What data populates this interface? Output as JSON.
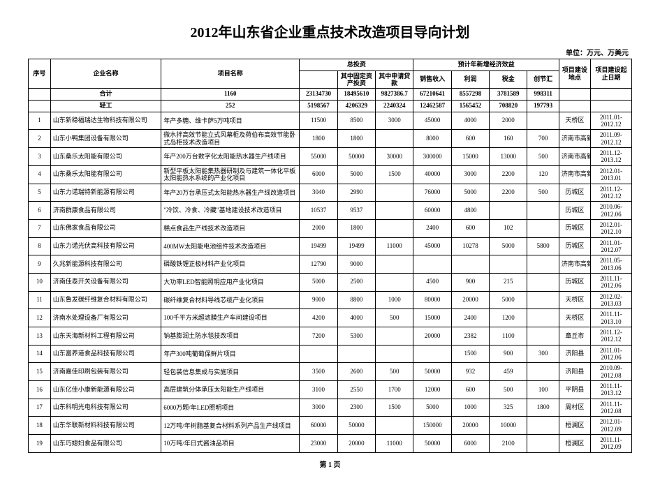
{
  "title": "2012年山东省企业重点技术改造项目导向计划",
  "unit_label": "单位：万元、万美元",
  "page_footer": "第 1 页",
  "headers": {
    "idx": "序号",
    "company": "企业名称",
    "project": "项目名称",
    "total_invest_group": "总投资",
    "fixed_asset": "其中固定资产投资",
    "apply_loan": "其中申请贷款",
    "benefit_group": "预计年新增经济效益",
    "sales": "销售收入",
    "profit": "利润",
    "tax": "税金",
    "fx": "创节汇",
    "location": "项目建设地点",
    "dates": "项目建设起止日期"
  },
  "summary": {
    "label": "合计",
    "project_count": "1160",
    "total": "23134730",
    "fixed": "18495610",
    "loan": "9827386.7",
    "sales": "67210641",
    "profit": "8557298",
    "tax": "3781589",
    "fx": "998311"
  },
  "section": {
    "label": "轻工",
    "project_count": "252",
    "total": "5198567",
    "fixed": "4206329",
    "loan": "2240324",
    "sales": "12462587",
    "profit": "1565452",
    "tax": "708820",
    "fx": "197793"
  },
  "rows": [
    {
      "idx": "1",
      "company": "山东新稳福瑞达生物科技有限公司",
      "project": "年产多糖、维卡萨5万吨项目",
      "total": "11500",
      "fixed": "8500",
      "loan": "3000",
      "sales": "45000",
      "profit": "4000",
      "tax": "2000",
      "fx": "",
      "loc": "天桥区",
      "date": "2011.01-2012.12"
    },
    {
      "idx": "2",
      "company": "山东小鸭集团设备有限公司",
      "project": "微水拌高效节能立式风幕柜及荷伯布高效节能卧式岛柜技术改造项目",
      "total": "1800",
      "fixed": "1800",
      "loan": "",
      "sales": "8000",
      "profit": "600",
      "tax": "160",
      "fx": "700",
      "loc": "济南市高新区",
      "date": "2011.09-2012.12"
    },
    {
      "idx": "3",
      "company": "山东桑乐太阳能有限公司",
      "project": "年产200万台数字化太阳能热水器生产线项目",
      "total": "55000",
      "fixed": "50000",
      "loan": "30000",
      "sales": "300000",
      "profit": "15000",
      "tax": "13000",
      "fx": "500",
      "loc": "济南市高新区",
      "date": "2011.12-2013.12"
    },
    {
      "idx": "4",
      "company": "山东桑乐太阳能有限公司",
      "project": "新型平板太阳能集热器研制及与建筑一体化平板太阳能热水系统的产业化项目",
      "total": "6000",
      "fixed": "5000",
      "loan": "1500",
      "sales": "40000",
      "profit": "3000",
      "tax": "2200",
      "fx": "120",
      "loc": "济南市高新区",
      "date": "2012.01-2013.01"
    },
    {
      "idx": "5",
      "company": "山东力诺瑞特新能源有限公司",
      "project": "年产20万台承压式太阳能热水器生产线改造项目",
      "total": "3040",
      "fixed": "2990",
      "loan": "",
      "sales": "76000",
      "profit": "5000",
      "tax": "2200",
      "fx": "500",
      "loc": "历城区",
      "date": "2011.12-2012.12"
    },
    {
      "idx": "6",
      "company": "济南群康食品有限公司",
      "project": "\"冷饮、冷食、冷藏\"基地建设技术改造项目",
      "total": "10537",
      "fixed": "9537",
      "loan": "",
      "sales": "60000",
      "profit": "4800",
      "tax": "",
      "fx": "",
      "loc": "历城区",
      "date": "2010.06-2012.06"
    },
    {
      "idx": "7",
      "company": "山东佛家食品有限公司",
      "project": "糕点食品生产线技术改造项目",
      "total": "2000",
      "fixed": "1800",
      "loan": "",
      "sales": "2400",
      "profit": "600",
      "tax": "102",
      "fx": "",
      "loc": "历城区",
      "date": "2012.01-2012.10"
    },
    {
      "idx": "8",
      "company": "山东力诺光伏高科技有限公司",
      "project": "400MW太阳能电池组件技术改造项目",
      "total": "19499",
      "fixed": "19499",
      "loan": "11000",
      "sales": "45000",
      "profit": "10278",
      "tax": "5000",
      "fx": "5800",
      "loc": "历城区",
      "date": "2011.01-2012.07"
    },
    {
      "idx": "9",
      "company": "久兆新能源科技有限公司",
      "project": "磷酸铁锂正极材料产业化项目",
      "total": "12790",
      "fixed": "9000",
      "loan": "",
      "sales": "",
      "profit": "",
      "tax": "",
      "fx": "",
      "loc": "济南市高新区",
      "date": "2011.05-2013.06"
    },
    {
      "idx": "10",
      "company": "济南佳泰开关设备有限公司",
      "project": "大功率LED智能照明应用产业化项目",
      "total": "5000",
      "fixed": "2500",
      "loan": "",
      "sales": "4500",
      "profit": "900",
      "tax": "215",
      "fx": "",
      "loc": "历城区",
      "date": "2011.11-2012.06"
    },
    {
      "idx": "11",
      "company": "山东鲁发碳纤维复合材料有限公司",
      "project": "碳纤维复合材料导线芯缆产业化项目",
      "total": "9000",
      "fixed": "8800",
      "loan": "1000",
      "sales": "80000",
      "profit": "20000",
      "tax": "5000",
      "fx": "",
      "loc": "天桥区",
      "date": "2012.02-2013.03"
    },
    {
      "idx": "12",
      "company": "济南水处理设备厂有限公司",
      "project": "100千平方米超滤膜生产车间建设项目",
      "total": "4200",
      "fixed": "4000",
      "loan": "500",
      "sales": "15000",
      "profit": "2400",
      "tax": "1200",
      "fx": "",
      "loc": "天桥区",
      "date": "2011.11-2013.10"
    },
    {
      "idx": "13",
      "company": "山东天海新材料工程有限公司",
      "project": "钠基膨润土防水毯技改项目",
      "total": "7200",
      "fixed": "5300",
      "loan": "",
      "sales": "20000",
      "profit": "2382",
      "tax": "1100",
      "fx": "",
      "loc": "章丘市",
      "date": "2011.12-2012.12"
    },
    {
      "idx": "14",
      "company": "山东富养道食品科技有限公司",
      "project": "年产300吨葡萄保鲜片项目",
      "total": "",
      "fixed": "",
      "loan": "",
      "sales": "",
      "profit": "1500",
      "tax": "900",
      "fx": "300",
      "loc": "济阳县",
      "date": "2011.01-2012.06"
    },
    {
      "idx": "15",
      "company": "济南嘉佳印刷包装有限公司",
      "project": "轻包装信息集成与实施项目",
      "total": "3500",
      "fixed": "2600",
      "loan": "500",
      "sales": "50000",
      "profit": "932",
      "tax": "459",
      "fx": "",
      "loc": "济阳县",
      "date": "2010.09-2012.08"
    },
    {
      "idx": "16",
      "company": "山东亿佳小康新能源有限公司",
      "project": "高层建筑分体承压太阳能生产线项目",
      "total": "3100",
      "fixed": "2550",
      "loan": "1700",
      "sales": "12000",
      "profit": "600",
      "tax": "500",
      "fx": "100",
      "loc": "平阴县",
      "date": "2011.11-2013.12"
    },
    {
      "idx": "17",
      "company": "山东科明光电科技有限公司",
      "project": "6000万颗/年LED照明项目",
      "total": "3000",
      "fixed": "2300",
      "loan": "1500",
      "sales": "5000",
      "profit": "1000",
      "tax": "325",
      "fx": "1800",
      "loc": "周村区",
      "date": "2011.11-2012.08"
    },
    {
      "idx": "18",
      "company": "山东华联新材料科技有限公司",
      "project": "12万吨/年树脂基复合材料系列产品生产线项目",
      "total": "60000",
      "fixed": "50000",
      "loan": "",
      "sales": "150000",
      "profit": "20000",
      "tax": "10000",
      "fx": "",
      "loc": "桓澜区",
      "date": "2012.01-2012.09"
    },
    {
      "idx": "19",
      "company": "山东巧媳妇食品有限公司",
      "project": "10万吨/年日式酱油品项目",
      "total": "23000",
      "fixed": "20000",
      "loan": "11000",
      "sales": "50000",
      "profit": "6000",
      "tax": "2100",
      "fx": "",
      "loc": "桓澜区",
      "date": "2011.11-2012.09"
    }
  ]
}
